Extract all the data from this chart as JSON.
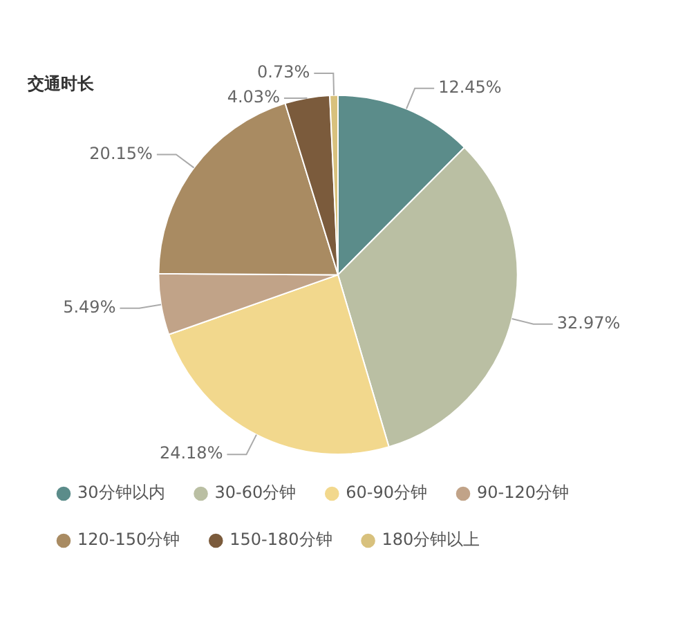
{
  "chart_data": {
    "type": "pie",
    "title": "交通时长",
    "categories": [
      "30分钟以内",
      "30-60分钟",
      "60-90分钟",
      "90-120分钟",
      "120-150分钟",
      "150-180分钟",
      "180分钟以上"
    ],
    "values": [
      12.45,
      32.97,
      24.18,
      5.49,
      20.15,
      4.03,
      0.73
    ],
    "value_labels": [
      "12.45%",
      "32.97%",
      "24.18%",
      "5.49%",
      "20.15%",
      "4.03%",
      "0.73%"
    ],
    "colors": [
      "#5b8c8a",
      "#babfa3",
      "#f2d88d",
      "#c1a388",
      "#a98b62",
      "#7b5b3c",
      "#d8c17d"
    ],
    "legend": "bottom"
  }
}
